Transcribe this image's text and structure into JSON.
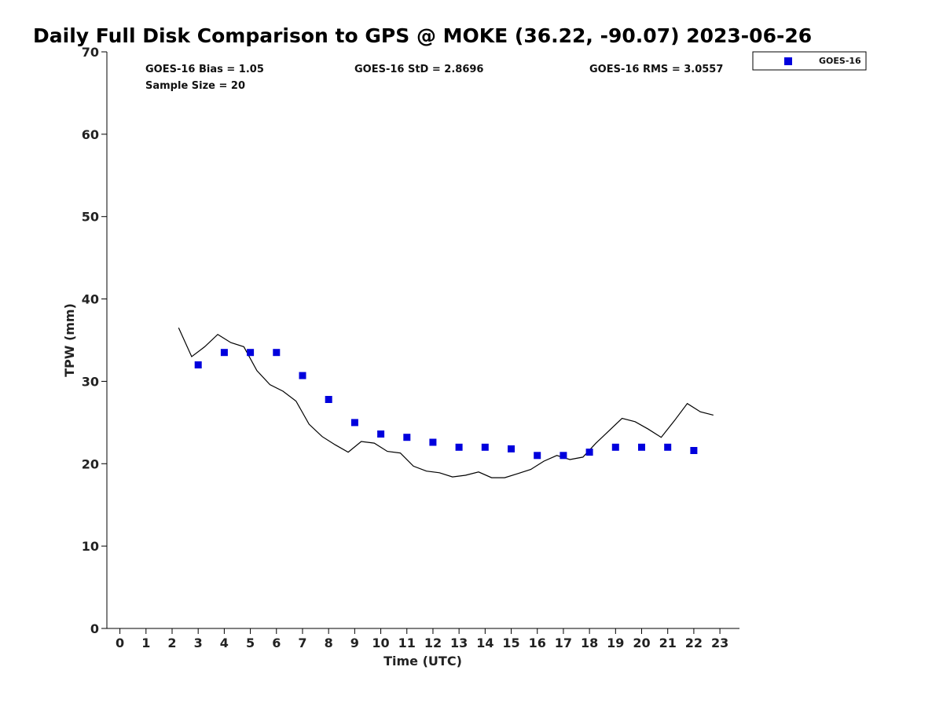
{
  "chart_data": {
    "type": "scatter",
    "title": "Daily Full Disk Comparison to GPS @ MOKE (36.22, -90.07) 2023-06-26",
    "xlabel": "Time (UTC)",
    "ylabel": "TPW (mm)",
    "xlim": [
      -0.5,
      23.75
    ],
    "ylim": [
      0,
      70
    ],
    "xticks": [
      "0",
      "1",
      "2",
      "3",
      "4",
      "5",
      "6",
      "7",
      "8",
      "9",
      "10",
      "11",
      "12",
      "13",
      "14",
      "15",
      "16",
      "17",
      "18",
      "19",
      "20",
      "21",
      "22",
      "23"
    ],
    "yticks": [
      "0",
      "10",
      "20",
      "30",
      "40",
      "50",
      "60",
      "70"
    ],
    "grid": false,
    "legend": {
      "placement": "top-right-outside",
      "entries": [
        "GOES-16"
      ]
    },
    "stats": {
      "bias": "GOES-16 Bias = 1.05",
      "std": "GOES-16 StD = 2.8696",
      "rms": "GOES-16 RMS = 3.0557",
      "sample_size": "Sample Size = 20"
    },
    "series": [
      {
        "name": "GOES-16",
        "kind": "scatter",
        "color": "#0000dd",
        "marker": "square",
        "x": [
          3,
          4,
          5,
          6,
          7,
          8,
          9,
          10,
          11,
          12,
          13,
          14,
          15,
          16,
          17,
          18,
          19,
          20,
          21,
          22
        ],
        "y": [
          32.0,
          33.5,
          33.5,
          33.5,
          30.7,
          27.8,
          25.0,
          23.6,
          23.2,
          22.6,
          22.0,
          22.0,
          21.8,
          21.0,
          21.0,
          21.4,
          22.0,
          22.0,
          22.0,
          21.6
        ]
      },
      {
        "kind": "line",
        "color": "#000000",
        "x": [
          2.25,
          2.75,
          3.25,
          3.75,
          4.25,
          4.75,
          5.25,
          5.75,
          6.25,
          6.75,
          7.25,
          7.75,
          8.25,
          8.75,
          9.25,
          9.75,
          10.25,
          10.75,
          11.25,
          11.75,
          12.25,
          12.75,
          13.25,
          13.75,
          14.25,
          14.75,
          15.25,
          15.75,
          16.25,
          16.75,
          17.25,
          17.75,
          18.25,
          18.75,
          19.25,
          19.75,
          20.25,
          20.75,
          21.25,
          21.75,
          22.25,
          22.75
        ],
        "y": [
          36.5,
          33.0,
          34.2,
          35.7,
          34.7,
          34.2,
          31.3,
          29.6,
          28.8,
          27.6,
          24.8,
          23.3,
          22.3,
          21.4,
          22.7,
          22.5,
          21.5,
          21.3,
          19.7,
          19.1,
          18.9,
          18.4,
          18.6,
          19.0,
          18.3,
          18.3,
          18.8,
          19.3,
          20.3,
          21.0,
          20.5,
          20.8,
          22.5,
          24.0,
          25.5,
          25.1,
          24.2,
          23.2,
          25.2,
          27.3,
          26.3,
          25.9
        ]
      }
    ]
  }
}
